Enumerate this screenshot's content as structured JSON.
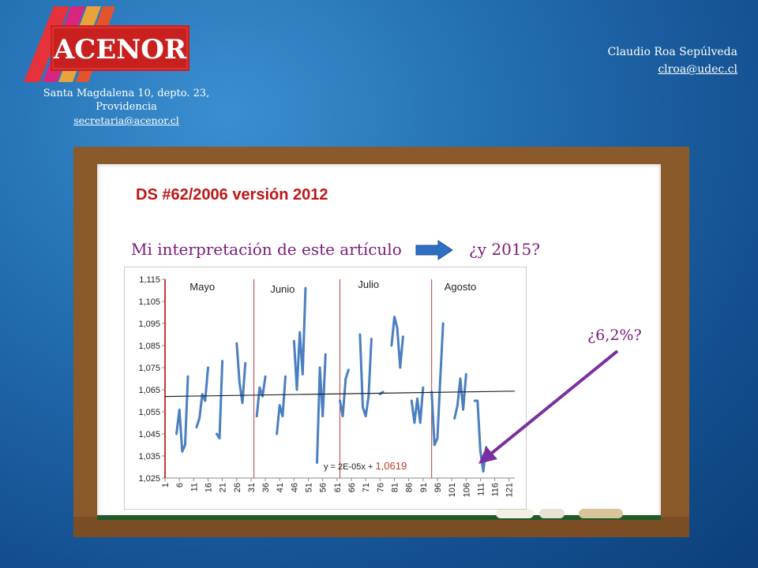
{
  "header": {
    "logo_text": "ACENOR",
    "address_line1": "Santa Magdalena 10, depto. 23,",
    "address_line2": "Providencia",
    "address_email": "secretaria@acenor.cl",
    "author_name": "Claudio Roa Sepúlveda",
    "author_email": "clroa@udec.cl"
  },
  "slide": {
    "title": "DS #62/2006 versión 2012",
    "subtitle": "Mi interpretación de este artículo",
    "question_2015": "¿y 2015?",
    "question_pct": "¿6,2%?"
  },
  "colors": {
    "line": "#4a7fc0",
    "trend": "#222222",
    "divider": "#c23a3a",
    "annotation": "#7a2fa0"
  },
  "chart_data": {
    "type": "line",
    "y_ticks": [
      "1,025",
      "1,035",
      "1,045",
      "1,055",
      "1,065",
      "1,075",
      "1,085",
      "1,095",
      "1,105",
      "1,115"
    ],
    "ylim": [
      1.025,
      1.115
    ],
    "x_ticks": [
      "1",
      "6",
      "11",
      "16",
      "21",
      "26",
      "31",
      "36",
      "41",
      "46",
      "51",
      "56",
      "61",
      "66",
      "71",
      "76",
      "81",
      "86",
      "91",
      "96",
      "101",
      "106",
      "111",
      "116",
      "121"
    ],
    "xlim": [
      1,
      123
    ],
    "months": [
      "Mayo",
      "Junio",
      "Julio",
      "Agosto"
    ],
    "month_dividers": [
      1,
      32,
      62,
      94
    ],
    "trendline_label": "y = 2E-05x + ",
    "trendline_value": "1,0619",
    "trend": {
      "slope": 2e-05,
      "intercept": 1.0619
    },
    "segments": [
      [
        [
          5,
          1.045
        ],
        [
          6,
          1.056
        ],
        [
          7,
          1.037
        ],
        [
          8,
          1.04
        ],
        [
          9,
          1.071
        ]
      ],
      [
        [
          12,
          1.048
        ],
        [
          13,
          1.052
        ],
        [
          14,
          1.063
        ],
        [
          15,
          1.06
        ],
        [
          16,
          1.075
        ]
      ],
      [
        [
          19,
          1.045
        ],
        [
          20,
          1.043
        ],
        [
          21,
          1.078
        ]
      ],
      [
        [
          26,
          1.086
        ],
        [
          27,
          1.068
        ],
        [
          28,
          1.059
        ],
        [
          29,
          1.077
        ]
      ],
      [
        [
          33,
          1.053
        ],
        [
          34,
          1.066
        ],
        [
          35,
          1.062
        ],
        [
          36,
          1.071
        ]
      ],
      [
        [
          40,
          1.045
        ],
        [
          41,
          1.058
        ],
        [
          42,
          1.053
        ],
        [
          43,
          1.071
        ]
      ],
      [
        [
          46,
          1.087
        ],
        [
          47,
          1.065
        ],
        [
          48,
          1.091
        ],
        [
          49,
          1.072
        ],
        [
          50,
          1.111
        ]
      ],
      [
        [
          54,
          1.032
        ],
        [
          55,
          1.075
        ],
        [
          56,
          1.053
        ],
        [
          57,
          1.081
        ]
      ],
      [
        [
          62,
          1.06
        ],
        [
          63,
          1.053
        ],
        [
          64,
          1.07
        ],
        [
          65,
          1.074
        ]
      ],
      [
        [
          69,
          1.09
        ],
        [
          70,
          1.057
        ],
        [
          71,
          1.053
        ],
        [
          72,
          1.062
        ],
        [
          73,
          1.088
        ]
      ],
      [
        [
          76,
          1.063
        ],
        [
          77,
          1.064
        ]
      ],
      [
        [
          80,
          1.085
        ],
        [
          81,
          1.098
        ],
        [
          82,
          1.093
        ],
        [
          83,
          1.075
        ],
        [
          84,
          1.089
        ]
      ],
      [
        [
          87,
          1.06
        ],
        [
          88,
          1.05
        ],
        [
          89,
          1.061
        ],
        [
          90,
          1.05
        ],
        [
          91,
          1.066
        ]
      ],
      [
        [
          94,
          1.064
        ],
        [
          95,
          1.04
        ],
        [
          96,
          1.043
        ],
        [
          97,
          1.07
        ],
        [
          98,
          1.095
        ]
      ],
      [
        [
          102,
          1.052
        ],
        [
          103,
          1.058
        ],
        [
          104,
          1.07
        ],
        [
          105,
          1.056
        ],
        [
          106,
          1.072
        ]
      ],
      [
        [
          109,
          1.06
        ],
        [
          110,
          1.06
        ],
        [
          111,
          1.037
        ],
        [
          112,
          1.028
        ],
        [
          113,
          1.039
        ]
      ]
    ]
  }
}
